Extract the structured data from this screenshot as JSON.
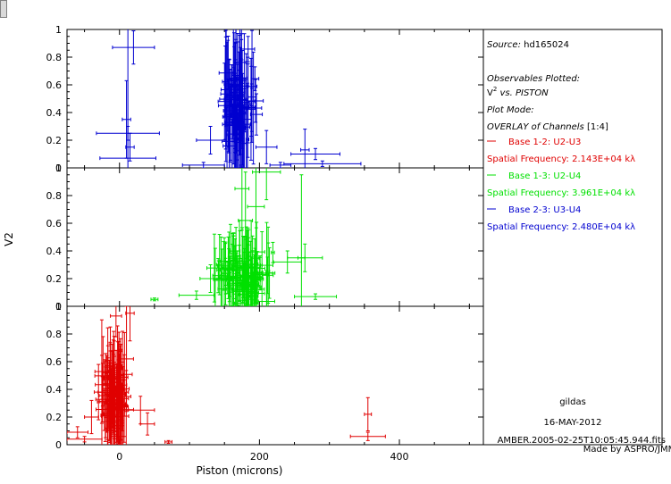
{
  "window": {
    "scroll_handle": "scroll-handle"
  },
  "legend": {
    "source_label": "Source:",
    "source_value": "hd165024",
    "observables_label": "Observables Plotted:",
    "observables_base": "V",
    "observables_sup": "2",
    "observables_rest": " vs. PISTON",
    "plot_mode_label": "Plot Mode:",
    "overlay_label": "OVERLAY of Channels",
    "overlay_range": "[1:4]",
    "bases": [
      {
        "label": "Base 1-2: U2-U3",
        "freq": "Spatial Frequency: 2.143E+04 kλ",
        "color": "#e00000"
      },
      {
        "label": "Base 1-3: U2-U4",
        "freq": "Spatial Frequency: 3.961E+04 kλ",
        "color": "#00e000"
      },
      {
        "label": "Base 2-3: U3-U4",
        "freq": "Spatial Frequency: 2.480E+04 kλ",
        "color": "#0000d0"
      }
    ],
    "program": "gildas",
    "date": "16-MAY-2012",
    "file": "AMBER.2005-02-25T10:05:45.944.fits",
    "credit": "Made by ASPRO/JMMC"
  },
  "chart_data": {
    "type": "scatter",
    "xlabel": "Piston (microns)",
    "ylabel": "V2",
    "xlim": [
      -75,
      520
    ],
    "x_ticks": [
      0,
      200,
      400
    ],
    "x_tick_labels": [
      "0",
      "200",
      "400"
    ],
    "ylim": [
      0,
      1
    ],
    "y_ticks": [
      0,
      0.2,
      0.4,
      0.6,
      0.8,
      1
    ],
    "y_tick_labels": [
      "0",
      "0.2",
      "0.4",
      "0.6",
      "0.8",
      "1"
    ],
    "error_bars": true,
    "series": [
      {
        "name": "Base 2-3: U3-U4",
        "panel": 0,
        "color": "#0000d0",
        "cluster": {
          "x_center": 170,
          "x_spread": 25,
          "y_center": 0.45,
          "y_spread": 0.35,
          "count": 90
        },
        "points": [
          [
            12,
            0.07,
            40,
            1.0
          ],
          [
            20,
            0.87,
            30,
            0.12
          ],
          [
            12,
            0.25,
            45,
            0.05
          ],
          [
            10,
            0.35,
            6,
            0.28
          ],
          [
            15,
            0.15,
            6,
            0.1
          ],
          [
            290,
            0.03,
            55,
            0.02
          ],
          [
            280,
            0.1,
            35,
            0.04
          ],
          [
            265,
            0.13,
            6,
            0.15
          ],
          [
            130,
            0.2,
            20,
            0.1
          ],
          [
            210,
            0.15,
            15,
            0.12
          ],
          [
            120,
            0.02,
            30,
            0.02
          ],
          [
            230,
            0.02,
            15,
            0.02
          ]
        ]
      },
      {
        "name": "Base 1-3: U2-U4",
        "panel": 1,
        "color": "#00e000",
        "cluster": {
          "x_center": 175,
          "x_spread": 35,
          "y_center": 0.22,
          "y_spread": 0.2,
          "count": 110
        },
        "points": [
          [
            210,
            0.97,
            20,
            0.2
          ],
          [
            175,
            0.85,
            10,
            0.3
          ],
          [
            180,
            0.62,
            10,
            0.35
          ],
          [
            195,
            0.72,
            12,
            0.4
          ],
          [
            240,
            0.32,
            20,
            0.08
          ],
          [
            265,
            0.35,
            25,
            0.1
          ],
          [
            280,
            0.07,
            30,
            0.02
          ],
          [
            110,
            0.08,
            25,
            0.03
          ],
          [
            50,
            0.05,
            5,
            0.01
          ],
          [
            260,
            0.35,
            5,
            0.6
          ],
          [
            130,
            0.2,
            15,
            0.1
          ]
        ]
      },
      {
        "name": "Base 1-2: U2-U3",
        "panel": 2,
        "color": "#e00000",
        "cluster": {
          "x_center": -8,
          "x_spread": 18,
          "y_center": 0.35,
          "y_spread": 0.25,
          "count": 90
        },
        "points": [
          [
            -50,
            0.04,
            25,
            0.02
          ],
          [
            -5,
            0.93,
            8,
            0.15
          ],
          [
            10,
            0.62,
            10,
            0.38
          ],
          [
            30,
            0.25,
            20,
            0.1
          ],
          [
            40,
            0.15,
            10,
            0.08
          ],
          [
            -40,
            0.2,
            10,
            0.12
          ],
          [
            70,
            0.02,
            5,
            0.01
          ],
          [
            355,
            0.06,
            25,
            0.03
          ],
          [
            355,
            0.22,
            5,
            0.12
          ],
          [
            -30,
            0.38,
            6,
            0.2
          ],
          [
            15,
            0.95,
            6,
            0.2
          ],
          [
            -60,
            0.09,
            15,
            0.04
          ]
        ]
      }
    ]
  }
}
